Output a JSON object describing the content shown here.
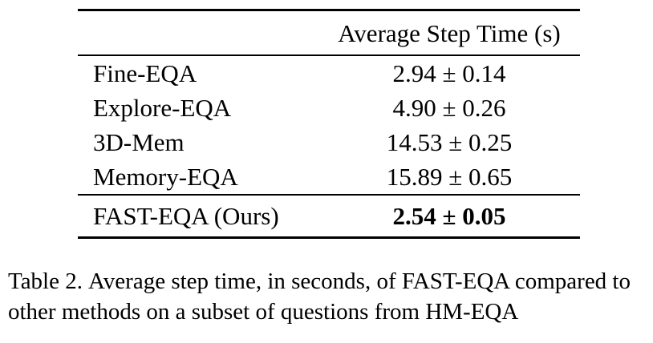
{
  "colors": {
    "background": "#ffffff",
    "text": "#000000",
    "rule": "#000000"
  },
  "table": {
    "header": {
      "method_col": "",
      "value_col": "Average Step Time (s)"
    },
    "rows": [
      {
        "method": "Fine-EQA",
        "value": "2.94 ± 0.14"
      },
      {
        "method": "Explore-EQA",
        "value": "4.90 ± 0.26"
      },
      {
        "method": "3D-Mem",
        "value": "14.53 ± 0.25"
      },
      {
        "method": "Memory-EQA",
        "value": "15.89 ± 0.65"
      }
    ],
    "highlight_row": {
      "method": "FAST-EQA (Ours)",
      "value": "2.54 ± 0.05"
    }
  },
  "caption": {
    "label": "Table 2.",
    "text": "Average step time, in seconds, of FAST-EQA compared to other methods on a subset of questions from HM-EQA"
  }
}
